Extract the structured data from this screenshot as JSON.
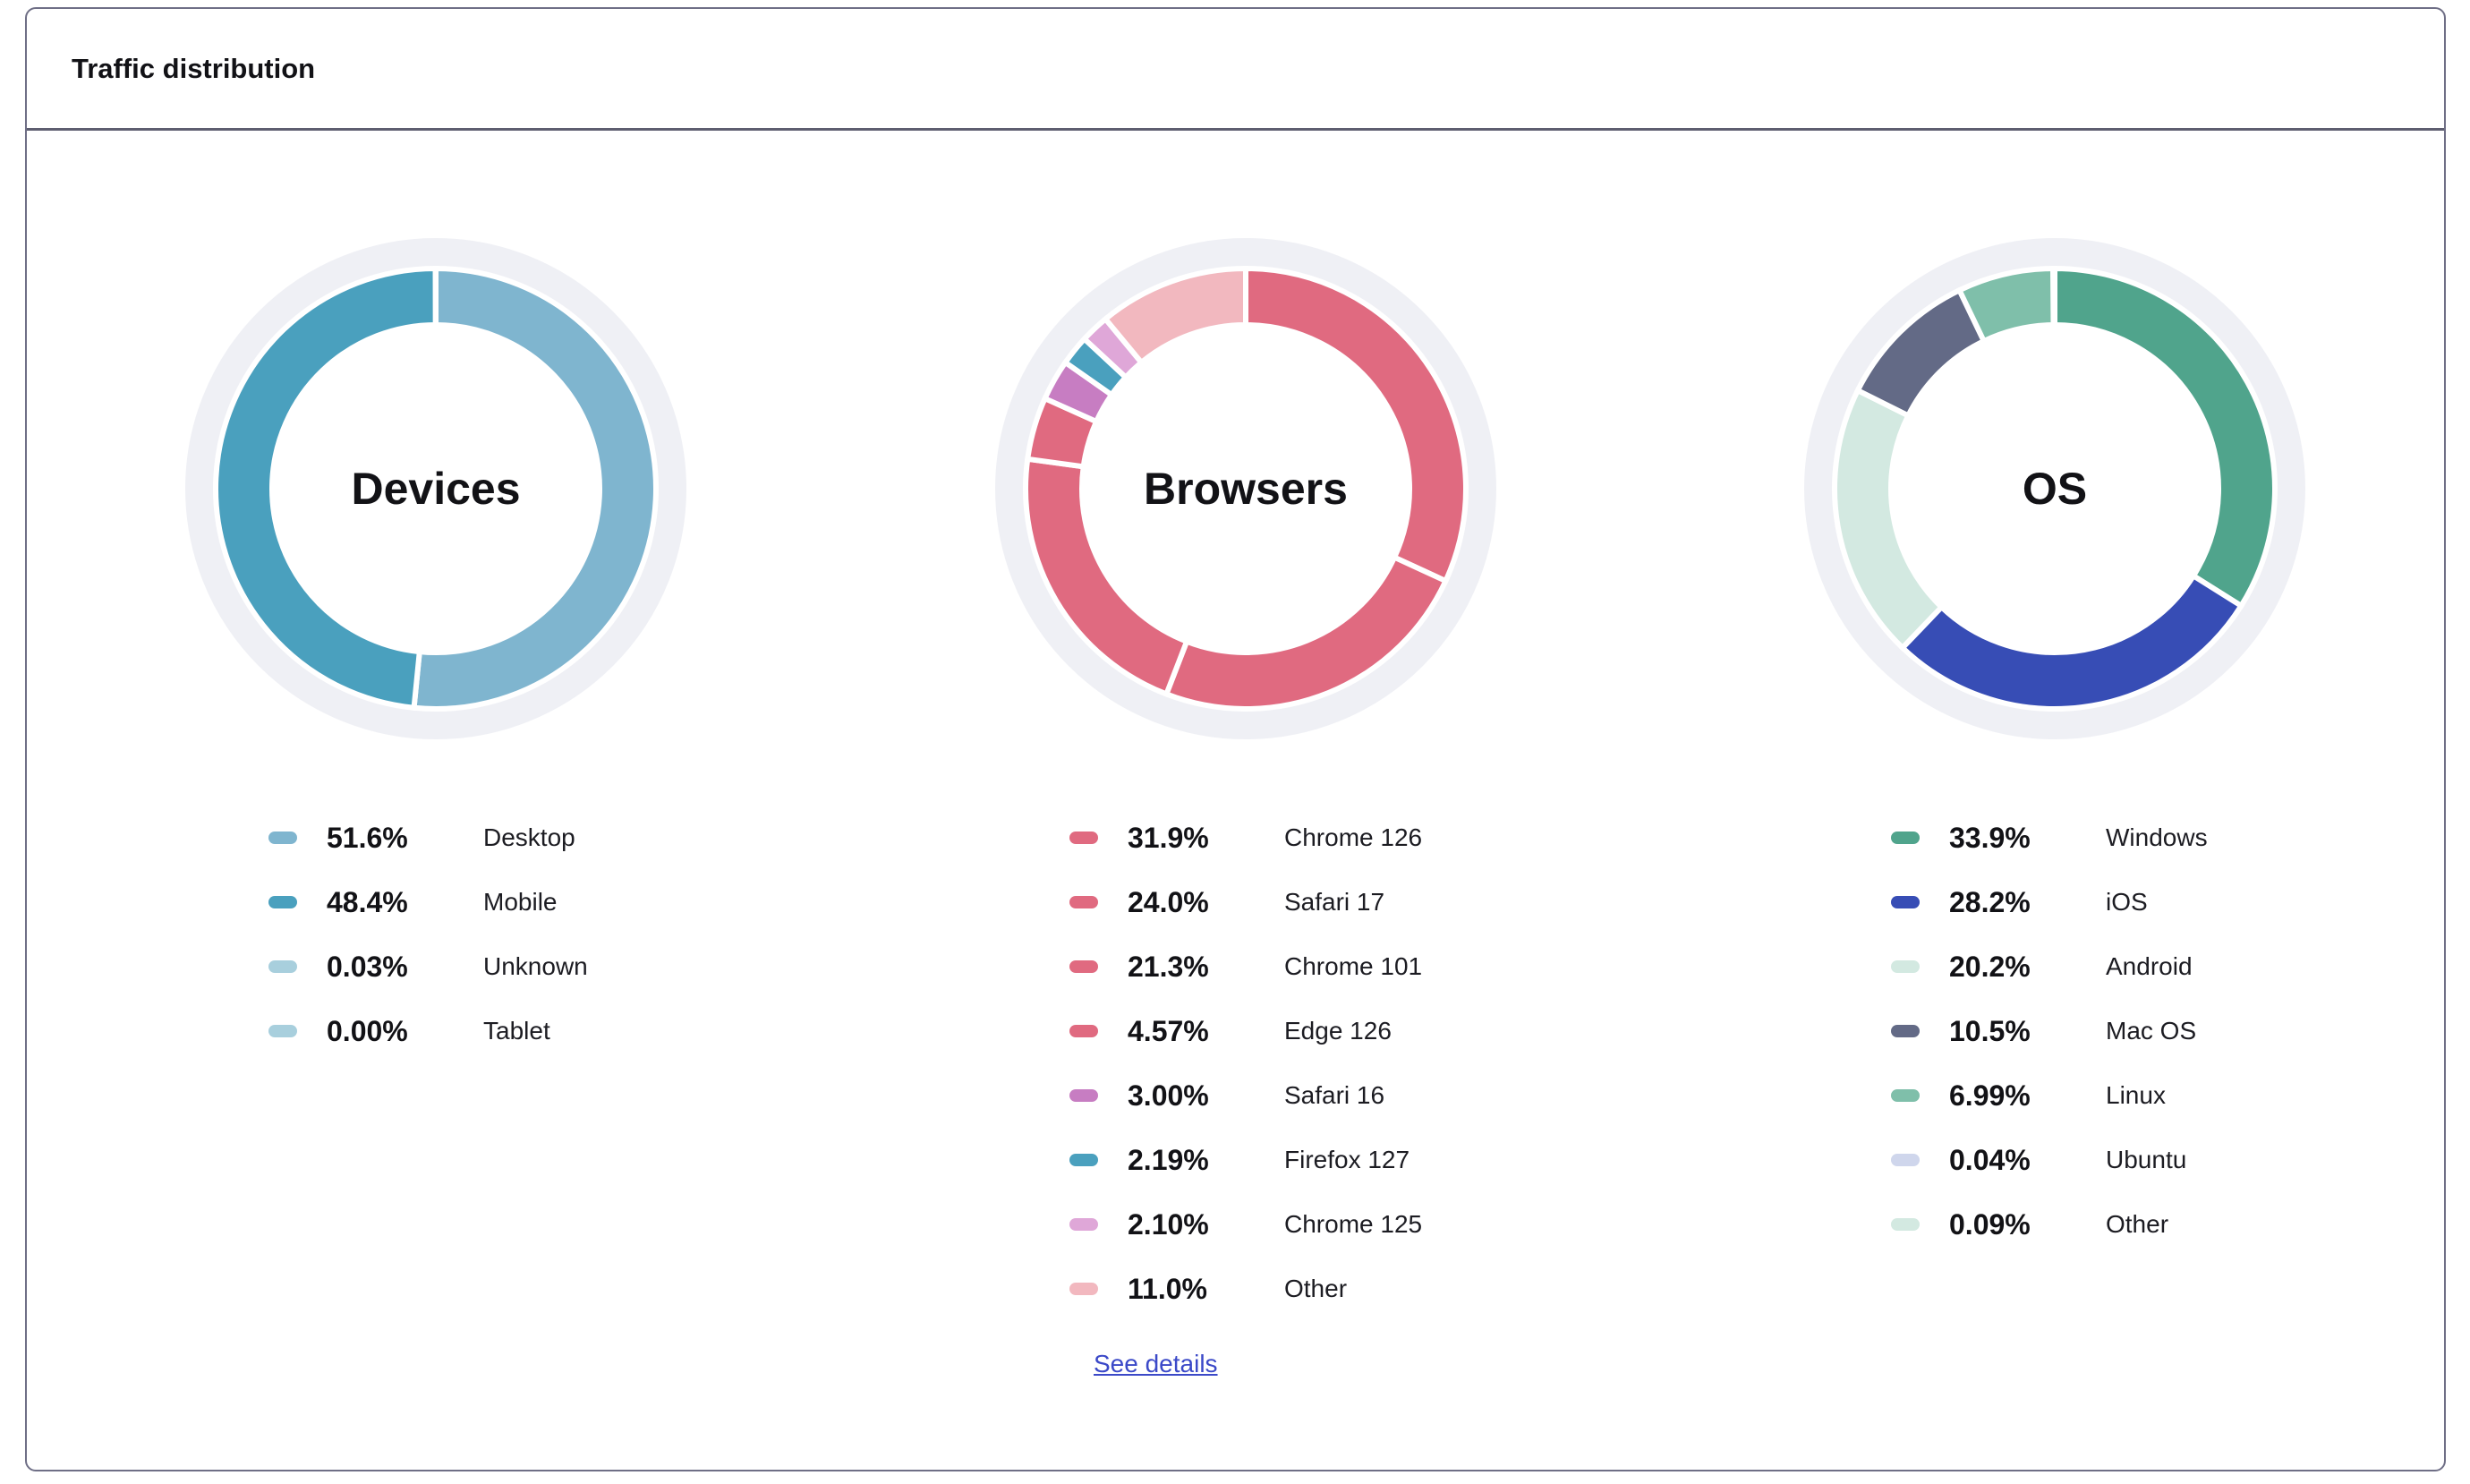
{
  "card": {
    "title": "Traffic distribution",
    "see_details_label": "See details"
  },
  "chart_data": [
    {
      "type": "pie",
      "title": "Devices",
      "series": [
        {
          "name": "Desktop",
          "value": 51.6,
          "label": "51.6%",
          "color": "#7fb5cf"
        },
        {
          "name": "Mobile",
          "value": 48.4,
          "label": "48.4%",
          "color": "#4aa0be"
        },
        {
          "name": "Unknown",
          "value": 0.03,
          "label": "0.03%",
          "color": "#a8cfdd"
        },
        {
          "name": "Tablet",
          "value": 0.0,
          "label": "0.00%",
          "color": "#a8cfdd"
        }
      ]
    },
    {
      "type": "pie",
      "title": "Browsers",
      "series": [
        {
          "name": "Chrome 126",
          "value": 31.9,
          "label": "31.9%",
          "color": "#e06a80"
        },
        {
          "name": "Safari 17",
          "value": 24.0,
          "label": "24.0%",
          "color": "#e06a80"
        },
        {
          "name": "Chrome 101",
          "value": 21.3,
          "label": "21.3%",
          "color": "#e06a80"
        },
        {
          "name": "Edge 126",
          "value": 4.57,
          "label": "4.57%",
          "color": "#e06a80"
        },
        {
          "name": "Safari 16",
          "value": 3.0,
          "label": "3.00%",
          "color": "#c77dc2"
        },
        {
          "name": "Firefox 127",
          "value": 2.19,
          "label": "2.19%",
          "color": "#4aa0be"
        },
        {
          "name": "Chrome 125",
          "value": 2.1,
          "label": "2.10%",
          "color": "#dfa7d8"
        },
        {
          "name": "Other",
          "value": 11.0,
          "label": "11.0%",
          "color": "#f2b8bf"
        }
      ]
    },
    {
      "type": "pie",
      "title": "OS",
      "series": [
        {
          "name": "Windows",
          "value": 33.9,
          "label": "33.9%",
          "color": "#50a48c"
        },
        {
          "name": "iOS",
          "value": 28.2,
          "label": "28.2%",
          "color": "#374db5"
        },
        {
          "name": "Android",
          "value": 20.2,
          "label": "20.2%",
          "color": "#d3e9e1"
        },
        {
          "name": "Mac OS",
          "value": 10.5,
          "label": "10.5%",
          "color": "#636a86"
        },
        {
          "name": "Linux",
          "value": 6.99,
          "label": "6.99%",
          "color": "#7fbfaa"
        },
        {
          "name": "Ubuntu",
          "value": 0.04,
          "label": "0.04%",
          "color": "#cfd6ec"
        },
        {
          "name": "Other",
          "value": 0.09,
          "label": "0.09%",
          "color": "#d3e9e1"
        }
      ]
    }
  ],
  "theme": {
    "track_color": "#eff0f5",
    "link_color": "#3b49c8"
  }
}
